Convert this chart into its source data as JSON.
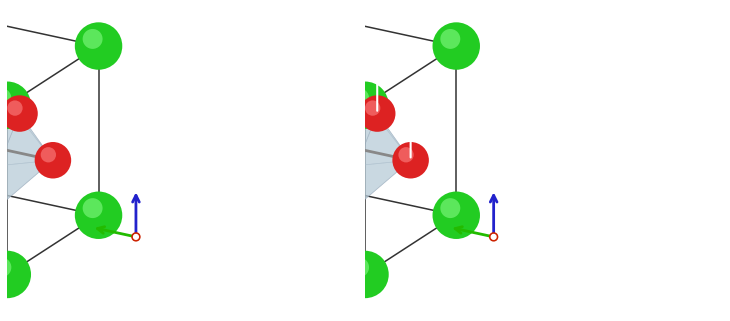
{
  "fig_width": 7.3,
  "fig_height": 3.21,
  "dpi": 100,
  "bg_color": "#ffffff",
  "cube_color": "#333333",
  "cube_lw": 1.1,
  "ba_color": "#22cc22",
  "ba_r": 0.13,
  "ti_color": "#3377cc",
  "ti_r": 0.07,
  "o_color": "#dd2222",
  "o_r": 0.1,
  "oct_color": "#b8ccd8",
  "oct_alpha": 0.5,
  "oct_edge_color": "#99aabb",
  "bond_color": "#888888",
  "bond_lw": 2.0,
  "arrow_color": "#ffffff",
  "arrow_lw": 1.8,
  "axis_c_color": "#2222cc",
  "axis_a_color": "#22bb00",
  "axis_o_color": "#cc2200",
  "elev_deg": 22,
  "azim_deg": 210,
  "view_dist": 5.0,
  "cube_a": 1.0,
  "cube_c_cubic": 1.0,
  "cube_c_tetra": 1.0
}
